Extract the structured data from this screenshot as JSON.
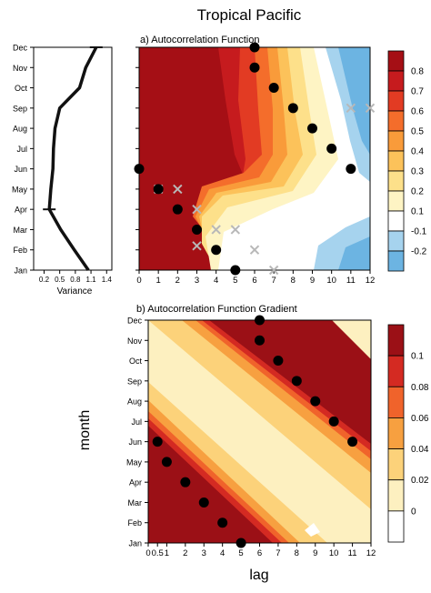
{
  "title": "Tropical Pacific",
  "months": [
    "Jan",
    "Feb",
    "Mar",
    "Apr",
    "May",
    "Jun",
    "Jul",
    "Aug",
    "Sep",
    "Oct",
    "Nov",
    "Dec"
  ],
  "xlabel": "lag",
  "ylabel": "month",
  "chart_data": [
    {
      "type": "line",
      "id": "variance",
      "xlabel": "Variance",
      "xticks": [
        0.2,
        0.5,
        0.8,
        1.1,
        1.4
      ],
      "xlim": [
        0.0,
        1.5
      ],
      "line_color": "#111111",
      "values": [
        1.05,
        0.78,
        0.52,
        0.3,
        0.33,
        0.37,
        0.38,
        0.41,
        0.5,
        0.88,
        1.0,
        1.2
      ],
      "errorbar_months": [
        "Apr",
        "Dec"
      ]
    },
    {
      "type": "heatmap",
      "id": "acf",
      "title": "a) Autocorrelation Function",
      "xticks": [
        0,
        1,
        2,
        3,
        4,
        5,
        6,
        7,
        8,
        9,
        10,
        11,
        12
      ],
      "xlim": [
        0,
        12
      ],
      "colorbar": {
        "labels": [
          "0.8",
          "0.7",
          "0.6",
          "0.5",
          "0.4",
          "0.3",
          "0.2",
          "0.1",
          "-0.1",
          "-0.2"
        ],
        "colors": [
          "#a50f15",
          "#c61b1e",
          "#e23b23",
          "#f46d2b",
          "#f99b3a",
          "#fcc25a",
          "#fde08a",
          "#fef4c4",
          "#ffffff",
          "#a6d3ee",
          "#6cb4e2"
        ]
      },
      "black_dots": [
        [
          0,
          6
        ],
        [
          1,
          5
        ],
        [
          2,
          4
        ],
        [
          3,
          3
        ],
        [
          4,
          2
        ],
        [
          5,
          1
        ],
        [
          6,
          12
        ],
        [
          6,
          11
        ],
        [
          7,
          10
        ],
        [
          8,
          9
        ],
        [
          9,
          8
        ],
        [
          10,
          7
        ],
        [
          11,
          6
        ]
      ],
      "grey_crosses": [
        [
          1,
          5
        ],
        [
          2,
          5
        ],
        [
          3,
          4
        ],
        [
          3,
          2.2
        ],
        [
          4,
          3
        ],
        [
          5,
          3
        ],
        [
          6,
          2
        ],
        [
          7,
          1
        ],
        [
          11,
          9
        ],
        [
          12,
          9
        ]
      ]
    },
    {
      "type": "heatmap",
      "id": "gradient",
      "title": "b) Autocorrelation Function Gradient",
      "xticks": [
        0,
        0.5,
        1,
        2,
        3,
        4,
        5,
        6,
        7,
        8,
        9,
        10,
        11,
        12
      ],
      "xtick_labels": [
        "0",
        "0.5",
        "1",
        "2",
        "3",
        "4",
        "5",
        "6",
        "7",
        "8",
        "9",
        "10",
        "11",
        "12"
      ],
      "xlim": [
        0,
        12
      ],
      "colorbar": {
        "labels": [
          "0.1",
          "0.08",
          "0.06",
          "0.04",
          "0.02",
          "0"
        ],
        "colors": [
          "#9b1016",
          "#d42a22",
          "#f0632b",
          "#f7a040",
          "#fcd27a",
          "#fdf0c0",
          "#ffffff"
        ]
      },
      "black_dots": [
        [
          0.5,
          6
        ],
        [
          1,
          5
        ],
        [
          2,
          4
        ],
        [
          3,
          3
        ],
        [
          4,
          2
        ],
        [
          5,
          1
        ],
        [
          6,
          12
        ],
        [
          6,
          11
        ],
        [
          7,
          10
        ],
        [
          8,
          9
        ],
        [
          9,
          8
        ],
        [
          10,
          7
        ],
        [
          11,
          6
        ]
      ]
    }
  ]
}
